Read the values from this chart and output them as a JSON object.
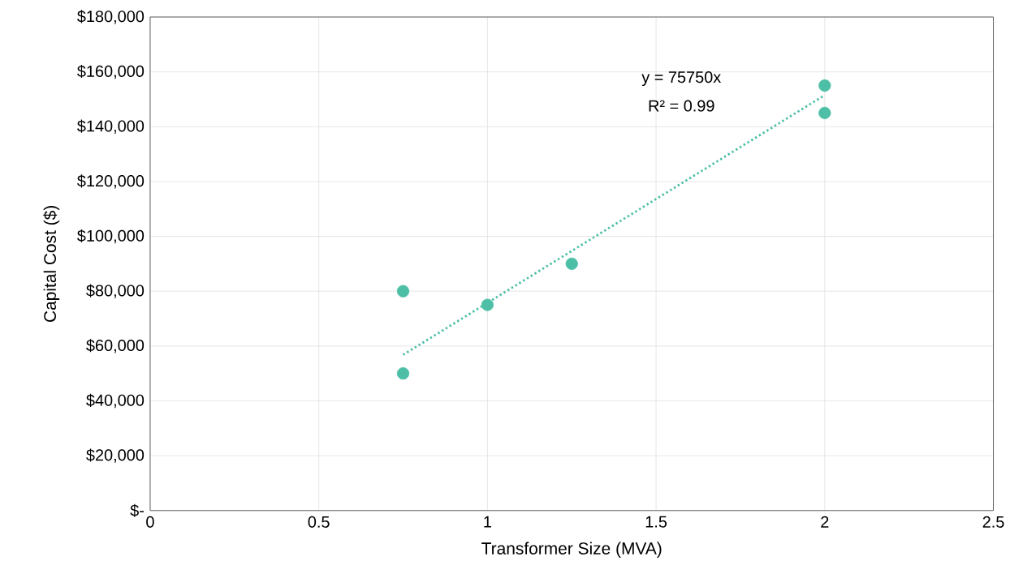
{
  "chart_data": {
    "type": "scatter",
    "xlabel": "Transformer Size (MVA)",
    "ylabel": "Capital Cost ($)",
    "xlim": [
      0,
      2.5
    ],
    "ylim": [
      0,
      180000
    ],
    "xticks": [
      0,
      0.5,
      1,
      1.5,
      2,
      2.5
    ],
    "yticks": [
      {
        "value": 0,
        "label": "$-"
      },
      {
        "value": 20000,
        "label": "$20,000"
      },
      {
        "value": 40000,
        "label": "$40,000"
      },
      {
        "value": 60000,
        "label": "$60,000"
      },
      {
        "value": 80000,
        "label": "$80,000"
      },
      {
        "value": 100000,
        "label": "$100,000"
      },
      {
        "value": 120000,
        "label": "$120,000"
      },
      {
        "value": 140000,
        "label": "$140,000"
      },
      {
        "value": 160000,
        "label": "$160,000"
      },
      {
        "value": 180000,
        "label": "$180,000"
      }
    ],
    "grid": true,
    "annotations": [
      "y = 75750x",
      "R² = 0.99"
    ],
    "series": [
      {
        "color": "#4cbfa6",
        "marker": "circle",
        "x": [
          0.75,
          0.75,
          1,
          1.25,
          2,
          2
        ],
        "values": [
          80000,
          50000,
          75000,
          90000,
          155000,
          145000
        ]
      },
      {
        "type": "line",
        "color": "#4cbfa6",
        "line_style": "dotted",
        "marker": "none",
        "x": [
          0.75,
          2
        ],
        "values": [
          56800,
          151500
        ]
      }
    ]
  }
}
